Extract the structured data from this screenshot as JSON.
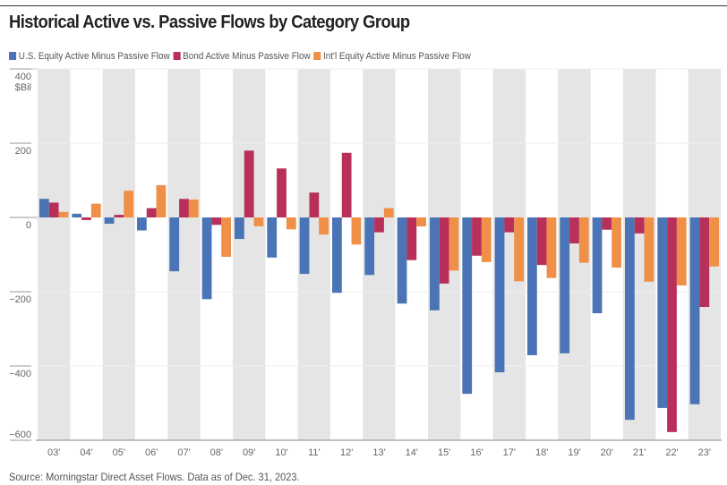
{
  "title": "Historical Active vs. Passive Flows by Category Group",
  "source": "Source: Morningstar Direct Asset Flows. Data as of Dec. 31, 2023.",
  "colors": {
    "us": "#4a74b5",
    "bond": "#b8305a",
    "intl": "#ef8f48",
    "band": "#e5e5e5"
  },
  "chart_data": {
    "type": "bar",
    "title": "Historical Active vs. Passive Flows by Category Group",
    "ylabel": "$Bil",
    "ylim": [
      -600,
      400
    ],
    "yticks": [
      400,
      200,
      0,
      -200,
      -400,
      -600
    ],
    "ytick_labels": [
      "400",
      "200",
      "0",
      "−200",
      "−400",
      "−600"
    ],
    "legend_position": "top-left",
    "categories": [
      "03'",
      "04'",
      "05'",
      "06'",
      "07'",
      "08'",
      "09'",
      "10'",
      "11'",
      "12'",
      "13'",
      "14'",
      "15'",
      "16'",
      "17'",
      "18'",
      "19'",
      "20'",
      "21'",
      "22'",
      "23'"
    ],
    "series": [
      {
        "name": "U.S. Equity Active Minus Passive Flow",
        "values": [
          50,
          10,
          -17,
          -35,
          -145,
          -220,
          -58,
          -108,
          -152,
          -203,
          -155,
          -232,
          -250,
          -475,
          -417,
          -371,
          -366,
          -258,
          -545,
          -513,
          -503
        ]
      },
      {
        "name": "Bond Active Minus Passive Flow",
        "values": [
          40,
          -7,
          7,
          25,
          50,
          -20,
          180,
          132,
          67,
          174,
          -40,
          -115,
          -178,
          -103,
          -40,
          -128,
          -70,
          -33,
          -43,
          -578,
          -241
        ]
      },
      {
        "name": "Int'l Equity Active Minus Passive Flow",
        "values": [
          15,
          37,
          72,
          87,
          48,
          -106,
          -24,
          -32,
          -46,
          -73,
          25,
          -24,
          -143,
          -120,
          -172,
          -163,
          -122,
          -135,
          -173,
          -183,
          -132
        ]
      }
    ]
  }
}
